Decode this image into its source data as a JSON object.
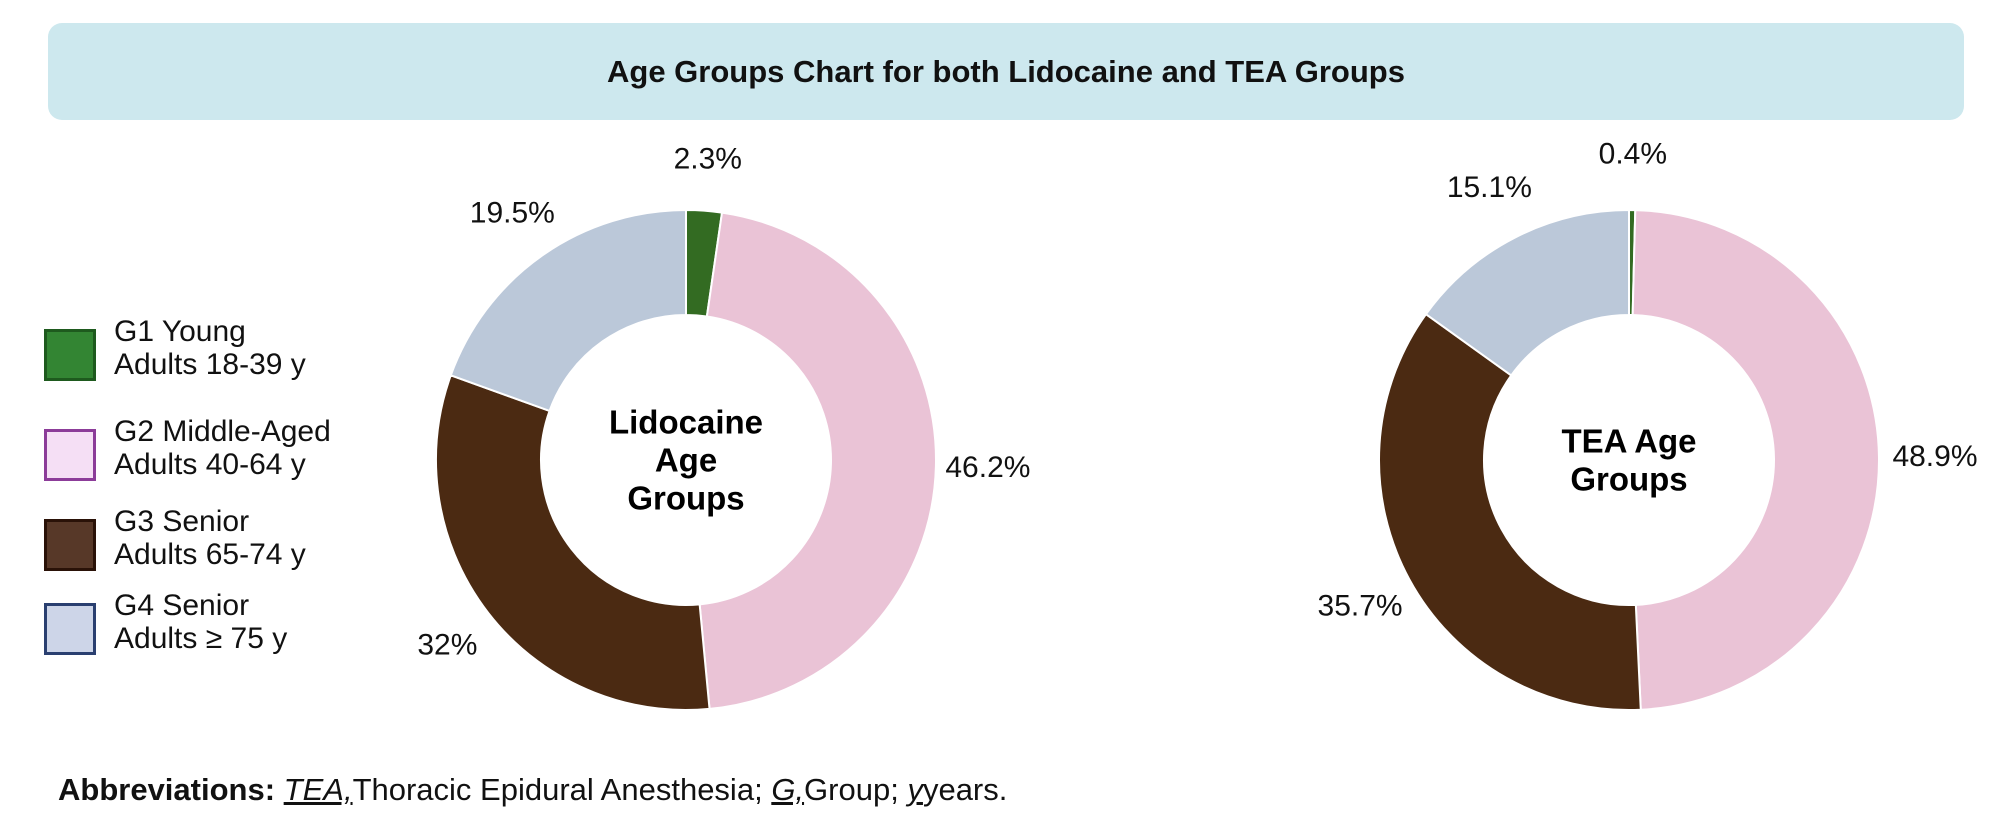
{
  "title": "Age Groups Chart for both Lidocaine and TEA Groups",
  "legend": [
    {
      "line1": "G1 Young",
      "line2": "Adults 18-39 y",
      "fill": "#338533",
      "border": "#1e5a1e"
    },
    {
      "line1": "G2 Middle-Aged",
      "line2": "Adults 40-64 y",
      "fill": "#f5dff5",
      "border": "#8c3c99"
    },
    {
      "line1": "G3 Senior",
      "line2": "Adults 65-74 y",
      "fill": "#573828",
      "border": "#2a1208"
    },
    {
      "line1": "G4 Senior",
      "line2": "Adults ≥ 75 y",
      "fill": "#cdd5e8",
      "border": "#2a3f70"
    }
  ],
  "chart_data": [
    {
      "type": "pie",
      "variant": "donut",
      "center_label": [
        "Lidocaine",
        "Age",
        "Groups"
      ],
      "categories": [
        "G1 Young Adults 18-39 y",
        "G2 Middle-Aged Adults 40-64 y",
        "G3 Senior Adults 65-74 y",
        "G4 Senior Adults ≥ 75 y"
      ],
      "values": [
        2.3,
        46.2,
        32,
        19.5
      ],
      "labels": [
        "2.3%",
        "46.2%",
        "32%",
        "19.5%"
      ],
      "colors": [
        "#336b22",
        "#eac3d6",
        "#4b2a12",
        "#bbc8d9"
      ]
    },
    {
      "type": "pie",
      "variant": "donut",
      "center_label": [
        "TEA Age",
        "Groups"
      ],
      "categories": [
        "G1 Young Adults 18-39 y",
        "G2 Middle-Aged Adults 40-64 y",
        "G3 Senior Adults 65-74 y",
        "G4 Senior Adults ≥ 75 y"
      ],
      "values": [
        0.4,
        48.9,
        35.7,
        15.1
      ],
      "labels": [
        "0.4%",
        "48.9%",
        "35.7%",
        "15.1%"
      ],
      "colors": [
        "#336b22",
        "#eac3d6",
        "#4b2a12",
        "#bbc8d9"
      ]
    }
  ],
  "footnote": {
    "heading": "Abbreviations:",
    "items": [
      {
        "abbr": "TEA,",
        "text": "Thoracic Epidural Anesthesia;"
      },
      {
        "abbr": "G,",
        "text": "Group;"
      },
      {
        "abbr": "y",
        "text": "years."
      }
    ]
  }
}
